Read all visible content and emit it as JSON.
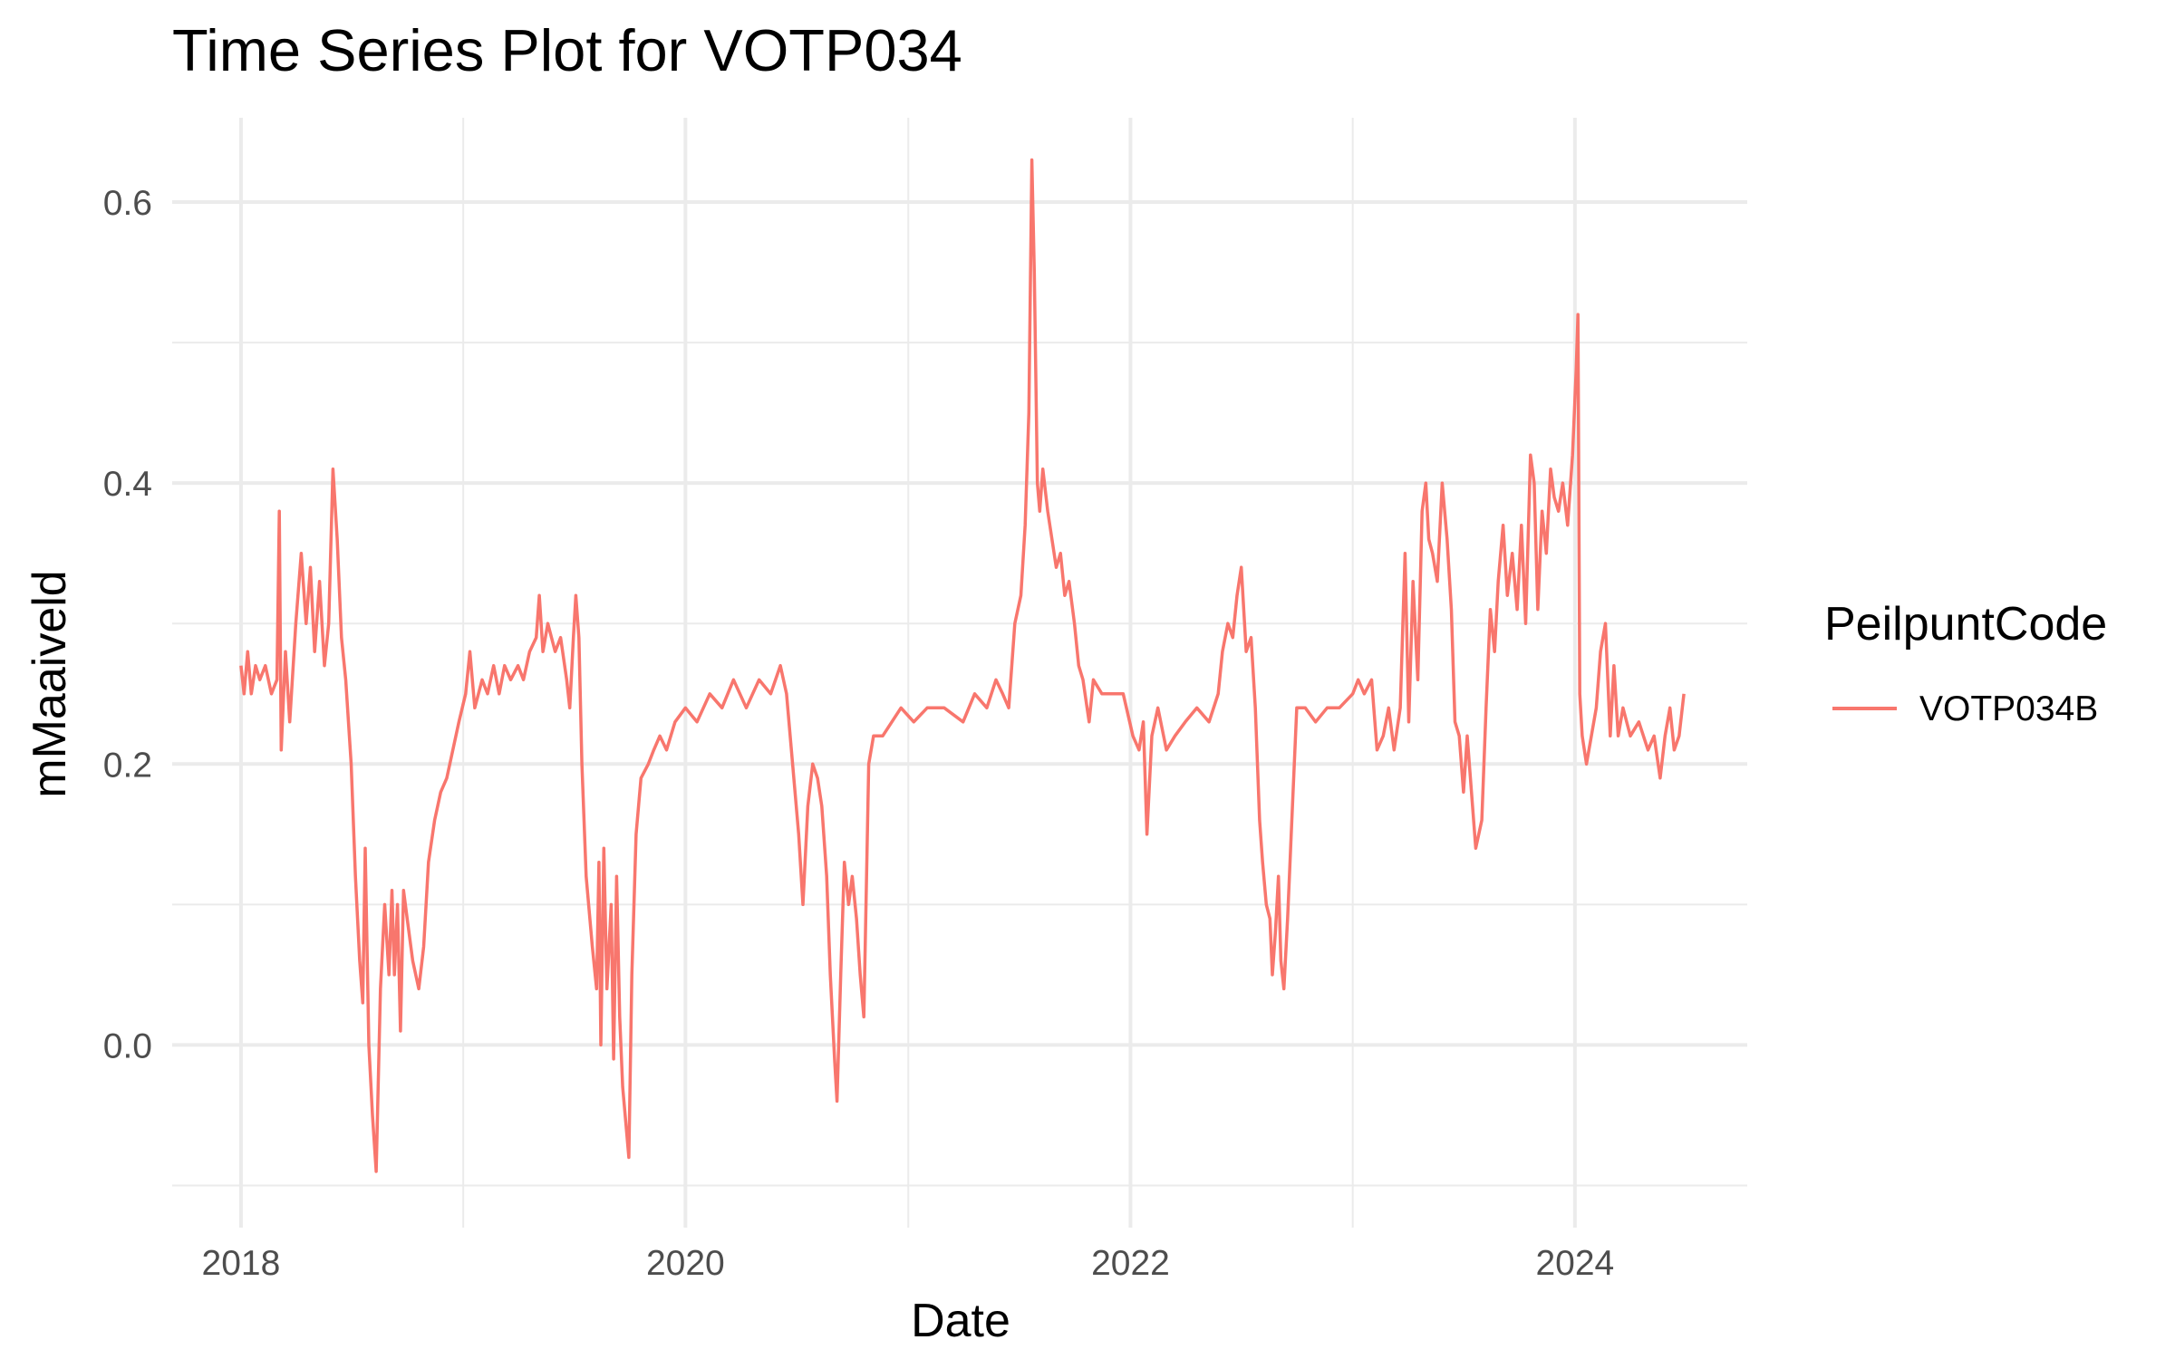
{
  "chart_data": {
    "type": "line",
    "title": "Time Series Plot for VOTP034",
    "xlabel": "Date",
    "ylabel": "mMaaiveld",
    "x_axis": {
      "scale": "date",
      "range": [
        "2017-09-10",
        "2024-10-10"
      ],
      "ticks": [
        {
          "value": "2018-01-01",
          "label": "2018"
        },
        {
          "value": "2020-01-01",
          "label": "2020"
        },
        {
          "value": "2022-01-01",
          "label": "2022"
        },
        {
          "value": "2024-01-01",
          "label": "2024"
        }
      ],
      "minor_ticks": [
        "2019-01-01",
        "2021-01-01",
        "2023-01-01"
      ]
    },
    "y_axis": {
      "range": [
        -0.13,
        0.66
      ],
      "ticks": [
        {
          "value": 0.0,
          "label": "0.0"
        },
        {
          "value": 0.2,
          "label": "0.2"
        },
        {
          "value": 0.4,
          "label": "0.4"
        },
        {
          "value": 0.6,
          "label": "0.6"
        }
      ],
      "minor_ticks": [
        -0.1,
        0.1,
        0.3,
        0.5
      ]
    },
    "grid": true,
    "legend": {
      "title": "PeilpuntCode",
      "position": "right"
    },
    "series": [
      {
        "name": "VOTP034B",
        "color": "#F8766D",
        "points": [
          [
            "2018-01-01",
            0.27
          ],
          [
            "2018-01-06",
            0.25
          ],
          [
            "2018-01-12",
            0.28
          ],
          [
            "2018-01-18",
            0.25
          ],
          [
            "2018-01-25",
            0.27
          ],
          [
            "2018-02-01",
            0.26
          ],
          [
            "2018-02-10",
            0.27
          ],
          [
            "2018-02-20",
            0.25
          ],
          [
            "2018-03-01",
            0.26
          ],
          [
            "2018-03-05",
            0.38
          ],
          [
            "2018-03-08",
            0.21
          ],
          [
            "2018-03-15",
            0.28
          ],
          [
            "2018-03-22",
            0.23
          ],
          [
            "2018-04-01",
            0.3
          ],
          [
            "2018-04-10",
            0.35
          ],
          [
            "2018-04-18",
            0.3
          ],
          [
            "2018-04-25",
            0.34
          ],
          [
            "2018-05-02",
            0.28
          ],
          [
            "2018-05-10",
            0.33
          ],
          [
            "2018-05-18",
            0.27
          ],
          [
            "2018-05-25",
            0.3
          ],
          [
            "2018-06-01",
            0.41
          ],
          [
            "2018-06-08",
            0.36
          ],
          [
            "2018-06-15",
            0.29
          ],
          [
            "2018-06-22",
            0.26
          ],
          [
            "2018-07-01",
            0.2
          ],
          [
            "2018-07-08",
            0.12
          ],
          [
            "2018-07-15",
            0.06
          ],
          [
            "2018-07-20",
            0.03
          ],
          [
            "2018-07-24",
            0.14
          ],
          [
            "2018-07-30",
            0.0
          ],
          [
            "2018-08-05",
            -0.05
          ],
          [
            "2018-08-11",
            -0.09
          ],
          [
            "2018-08-18",
            0.04
          ],
          [
            "2018-08-25",
            0.1
          ],
          [
            "2018-09-01",
            0.05
          ],
          [
            "2018-09-06",
            0.11
          ],
          [
            "2018-09-10",
            0.05
          ],
          [
            "2018-09-15",
            0.1
          ],
          [
            "2018-09-20",
            0.01
          ],
          [
            "2018-09-25",
            0.11
          ],
          [
            "2018-10-01",
            0.09
          ],
          [
            "2018-10-10",
            0.06
          ],
          [
            "2018-10-20",
            0.04
          ],
          [
            "2018-10-28",
            0.07
          ],
          [
            "2018-11-05",
            0.13
          ],
          [
            "2018-11-15",
            0.16
          ],
          [
            "2018-11-25",
            0.18
          ],
          [
            "2018-12-05",
            0.19
          ],
          [
            "2018-12-15",
            0.21
          ],
          [
            "2018-12-25",
            0.23
          ],
          [
            "2019-01-05",
            0.25
          ],
          [
            "2019-01-12",
            0.28
          ],
          [
            "2019-01-20",
            0.24
          ],
          [
            "2019-02-01",
            0.26
          ],
          [
            "2019-02-10",
            0.25
          ],
          [
            "2019-02-20",
            0.27
          ],
          [
            "2019-03-01",
            0.25
          ],
          [
            "2019-03-10",
            0.27
          ],
          [
            "2019-03-20",
            0.26
          ],
          [
            "2019-04-01",
            0.27
          ],
          [
            "2019-04-10",
            0.26
          ],
          [
            "2019-04-20",
            0.28
          ],
          [
            "2019-05-01",
            0.29
          ],
          [
            "2019-05-06",
            0.32
          ],
          [
            "2019-05-12",
            0.28
          ],
          [
            "2019-05-20",
            0.3
          ],
          [
            "2019-06-01",
            0.28
          ],
          [
            "2019-06-10",
            0.29
          ],
          [
            "2019-06-20",
            0.26
          ],
          [
            "2019-06-25",
            0.24
          ],
          [
            "2019-07-01",
            0.29
          ],
          [
            "2019-07-05",
            0.32
          ],
          [
            "2019-07-10",
            0.29
          ],
          [
            "2019-07-15",
            0.2
          ],
          [
            "2019-07-22",
            0.12
          ],
          [
            "2019-08-01",
            0.07
          ],
          [
            "2019-08-08",
            0.04
          ],
          [
            "2019-08-12",
            0.13
          ],
          [
            "2019-08-15",
            0.0
          ],
          [
            "2019-08-20",
            0.14
          ],
          [
            "2019-08-25",
            0.04
          ],
          [
            "2019-09-01",
            0.1
          ],
          [
            "2019-09-05",
            -0.01
          ],
          [
            "2019-09-10",
            0.12
          ],
          [
            "2019-09-15",
            0.02
          ],
          [
            "2019-09-20",
            -0.03
          ],
          [
            "2019-09-26",
            -0.06
          ],
          [
            "2019-09-30",
            -0.08
          ],
          [
            "2019-10-05",
            0.05
          ],
          [
            "2019-10-12",
            0.15
          ],
          [
            "2019-10-20",
            0.19
          ],
          [
            "2019-11-01",
            0.2
          ],
          [
            "2019-11-10",
            0.21
          ],
          [
            "2019-11-20",
            0.22
          ],
          [
            "2019-12-01",
            0.21
          ],
          [
            "2019-12-15",
            0.23
          ],
          [
            "2020-01-01",
            0.24
          ],
          [
            "2020-01-20",
            0.23
          ],
          [
            "2020-02-10",
            0.25
          ],
          [
            "2020-03-01",
            0.24
          ],
          [
            "2020-03-20",
            0.26
          ],
          [
            "2020-04-10",
            0.24
          ],
          [
            "2020-05-01",
            0.26
          ],
          [
            "2020-05-20",
            0.25
          ],
          [
            "2020-06-05",
            0.27
          ],
          [
            "2020-06-15",
            0.25
          ],
          [
            "2020-06-25",
            0.2
          ],
          [
            "2020-07-05",
            0.15
          ],
          [
            "2020-07-12",
            0.1
          ],
          [
            "2020-07-20",
            0.17
          ],
          [
            "2020-07-28",
            0.2
          ],
          [
            "2020-08-05",
            0.19
          ],
          [
            "2020-08-12",
            0.17
          ],
          [
            "2020-08-20",
            0.12
          ],
          [
            "2020-08-26",
            0.05
          ],
          [
            "2020-09-02",
            -0.01
          ],
          [
            "2020-09-06",
            -0.04
          ],
          [
            "2020-09-12",
            0.05
          ],
          [
            "2020-09-18",
            0.13
          ],
          [
            "2020-09-25",
            0.1
          ],
          [
            "2020-10-01",
            0.12
          ],
          [
            "2020-10-08",
            0.09
          ],
          [
            "2020-10-14",
            0.05
          ],
          [
            "2020-10-20",
            0.02
          ],
          [
            "2020-10-28",
            0.2
          ],
          [
            "2020-11-05",
            0.22
          ],
          [
            "2020-11-20",
            0.22
          ],
          [
            "2020-12-05",
            0.23
          ],
          [
            "2020-12-20",
            0.24
          ],
          [
            "2021-01-10",
            0.23
          ],
          [
            "2021-02-01",
            0.24
          ],
          [
            "2021-03-01",
            0.24
          ],
          [
            "2021-04-01",
            0.23
          ],
          [
            "2021-04-20",
            0.25
          ],
          [
            "2021-05-10",
            0.24
          ],
          [
            "2021-05-25",
            0.26
          ],
          [
            "2021-06-05",
            0.25
          ],
          [
            "2021-06-15",
            0.24
          ],
          [
            "2021-06-25",
            0.3
          ],
          [
            "2021-07-05",
            0.32
          ],
          [
            "2021-07-12",
            0.37
          ],
          [
            "2021-07-18",
            0.45
          ],
          [
            "2021-07-23",
            0.63
          ],
          [
            "2021-07-27",
            0.55
          ],
          [
            "2021-08-01",
            0.4
          ],
          [
            "2021-08-05",
            0.38
          ],
          [
            "2021-08-10",
            0.41
          ],
          [
            "2021-08-18",
            0.38
          ],
          [
            "2021-08-25",
            0.36
          ],
          [
            "2021-09-01",
            0.34
          ],
          [
            "2021-09-08",
            0.35
          ],
          [
            "2021-09-15",
            0.32
          ],
          [
            "2021-09-22",
            0.33
          ],
          [
            "2021-10-01",
            0.3
          ],
          [
            "2021-10-08",
            0.27
          ],
          [
            "2021-10-15",
            0.26
          ],
          [
            "2021-10-25",
            0.23
          ],
          [
            "2021-11-01",
            0.26
          ],
          [
            "2021-11-15",
            0.25
          ],
          [
            "2021-12-01",
            0.25
          ],
          [
            "2021-12-20",
            0.25
          ],
          [
            "2022-01-05",
            0.22
          ],
          [
            "2022-01-15",
            0.21
          ],
          [
            "2022-01-22",
            0.23
          ],
          [
            "2022-01-28",
            0.15
          ],
          [
            "2022-02-05",
            0.22
          ],
          [
            "2022-02-15",
            0.24
          ],
          [
            "2022-03-01",
            0.21
          ],
          [
            "2022-03-15",
            0.22
          ],
          [
            "2022-04-01",
            0.23
          ],
          [
            "2022-04-20",
            0.24
          ],
          [
            "2022-05-10",
            0.23
          ],
          [
            "2022-05-25",
            0.25
          ],
          [
            "2022-06-01",
            0.28
          ],
          [
            "2022-06-10",
            0.3
          ],
          [
            "2022-06-18",
            0.29
          ],
          [
            "2022-06-25",
            0.32
          ],
          [
            "2022-07-02",
            0.34
          ],
          [
            "2022-07-10",
            0.28
          ],
          [
            "2022-07-18",
            0.29
          ],
          [
            "2022-07-25",
            0.24
          ],
          [
            "2022-08-01",
            0.16
          ],
          [
            "2022-08-06",
            0.13
          ],
          [
            "2022-08-12",
            0.1
          ],
          [
            "2022-08-18",
            0.09
          ],
          [
            "2022-08-22",
            0.05
          ],
          [
            "2022-08-27",
            0.08
          ],
          [
            "2022-09-01",
            0.12
          ],
          [
            "2022-09-05",
            0.06
          ],
          [
            "2022-09-10",
            0.04
          ],
          [
            "2022-09-16",
            0.09
          ],
          [
            "2022-09-22",
            0.15
          ],
          [
            "2022-10-01",
            0.24
          ],
          [
            "2022-10-15",
            0.24
          ],
          [
            "2022-11-01",
            0.23
          ],
          [
            "2022-11-20",
            0.24
          ],
          [
            "2022-12-10",
            0.24
          ],
          [
            "2023-01-01",
            0.25
          ],
          [
            "2023-01-10",
            0.26
          ],
          [
            "2023-01-20",
            0.25
          ],
          [
            "2023-02-01",
            0.26
          ],
          [
            "2023-02-10",
            0.21
          ],
          [
            "2023-02-20",
            0.22
          ],
          [
            "2023-03-01",
            0.24
          ],
          [
            "2023-03-10",
            0.21
          ],
          [
            "2023-03-20",
            0.24
          ],
          [
            "2023-03-28",
            0.35
          ],
          [
            "2023-04-03",
            0.23
          ],
          [
            "2023-04-10",
            0.33
          ],
          [
            "2023-04-18",
            0.26
          ],
          [
            "2023-04-25",
            0.38
          ],
          [
            "2023-05-01",
            0.4
          ],
          [
            "2023-05-06",
            0.36
          ],
          [
            "2023-05-12",
            0.35
          ],
          [
            "2023-05-20",
            0.33
          ],
          [
            "2023-05-28",
            0.4
          ],
          [
            "2023-06-05",
            0.36
          ],
          [
            "2023-06-12",
            0.31
          ],
          [
            "2023-06-18",
            0.23
          ],
          [
            "2023-06-25",
            0.22
          ],
          [
            "2023-07-02",
            0.18
          ],
          [
            "2023-07-08",
            0.22
          ],
          [
            "2023-07-15",
            0.18
          ],
          [
            "2023-07-22",
            0.14
          ],
          [
            "2023-08-01",
            0.16
          ],
          [
            "2023-08-08",
            0.24
          ],
          [
            "2023-08-15",
            0.31
          ],
          [
            "2023-08-22",
            0.28
          ],
          [
            "2023-08-28",
            0.33
          ],
          [
            "2023-09-05",
            0.37
          ],
          [
            "2023-09-12",
            0.32
          ],
          [
            "2023-09-20",
            0.35
          ],
          [
            "2023-09-28",
            0.31
          ],
          [
            "2023-10-05",
            0.37
          ],
          [
            "2023-10-12",
            0.3
          ],
          [
            "2023-10-20",
            0.42
          ],
          [
            "2023-10-26",
            0.4
          ],
          [
            "2023-11-01",
            0.31
          ],
          [
            "2023-11-08",
            0.38
          ],
          [
            "2023-11-15",
            0.35
          ],
          [
            "2023-11-22",
            0.41
          ],
          [
            "2023-11-28",
            0.39
          ],
          [
            "2023-12-05",
            0.38
          ],
          [
            "2023-12-12",
            0.4
          ],
          [
            "2023-12-20",
            0.37
          ],
          [
            "2023-12-28",
            0.42
          ],
          [
            "2024-01-03",
            0.48
          ],
          [
            "2024-01-06",
            0.52
          ],
          [
            "2024-01-09",
            0.25
          ],
          [
            "2024-01-13",
            0.22
          ],
          [
            "2024-01-20",
            0.2
          ],
          [
            "2024-01-28",
            0.22
          ],
          [
            "2024-02-05",
            0.24
          ],
          [
            "2024-02-12",
            0.28
          ],
          [
            "2024-02-20",
            0.3
          ],
          [
            "2024-02-28",
            0.22
          ],
          [
            "2024-03-05",
            0.27
          ],
          [
            "2024-03-12",
            0.22
          ],
          [
            "2024-03-20",
            0.24
          ],
          [
            "2024-04-01",
            0.22
          ],
          [
            "2024-04-15",
            0.23
          ],
          [
            "2024-04-30",
            0.21
          ],
          [
            "2024-05-10",
            0.22
          ],
          [
            "2024-05-20",
            0.19
          ],
          [
            "2024-05-28",
            0.22
          ],
          [
            "2024-06-05",
            0.24
          ],
          [
            "2024-06-12",
            0.21
          ],
          [
            "2024-06-20",
            0.22
          ],
          [
            "2024-06-28",
            0.25
          ]
        ]
      }
    ]
  }
}
